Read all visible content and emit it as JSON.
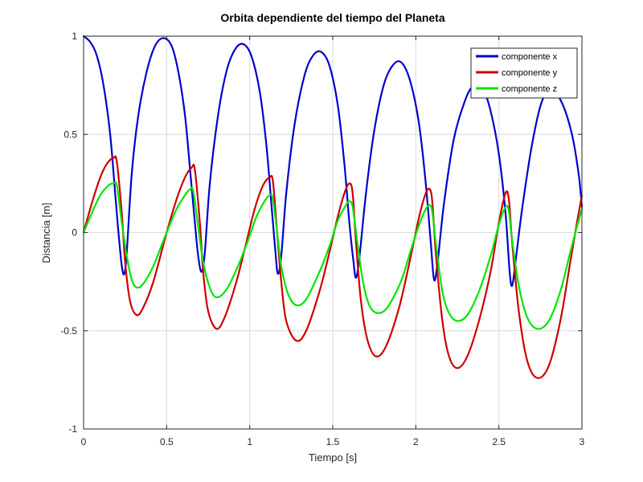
{
  "chart_data": {
    "type": "line",
    "title": "Orbita dependiente del tiempo del Planeta",
    "xlabel": "Tiempo [s]",
    "ylabel": "Distancia [m]",
    "xlim": [
      0,
      3
    ],
    "ylim": [
      -1,
      1
    ],
    "xticks": [
      0,
      0.5,
      1,
      1.5,
      2,
      2.5,
      3
    ],
    "xtick_labels": [
      "0",
      "0.5",
      "1",
      "1.5",
      "2",
      "2.5",
      "3"
    ],
    "yticks": [
      -1,
      -0.5,
      0,
      0.5,
      1
    ],
    "ytick_labels": [
      "-1",
      "-0.5",
      "0",
      "0.5",
      "1"
    ],
    "grid": true,
    "legend_position": "top-right",
    "series": [
      {
        "name": "componente x",
        "color": "#0000cc",
        "points": [
          [
            0,
            1
          ],
          [
            0.04,
            0.97
          ],
          [
            0.08,
            0.9
          ],
          [
            0.12,
            0.75
          ],
          [
            0.16,
            0.5
          ],
          [
            0.19,
            0.2
          ],
          [
            0.21,
            0
          ],
          [
            0.23,
            -0.17
          ],
          [
            0.245,
            -0.21
          ],
          [
            0.26,
            -0.1
          ],
          [
            0.29,
            0.3
          ],
          [
            0.33,
            0.6
          ],
          [
            0.38,
            0.82
          ],
          [
            0.43,
            0.95
          ],
          [
            0.48,
            0.99
          ],
          [
            0.53,
            0.95
          ],
          [
            0.57,
            0.82
          ],
          [
            0.61,
            0.6
          ],
          [
            0.64,
            0.33
          ],
          [
            0.67,
            0.05
          ],
          [
            0.69,
            -0.12
          ],
          [
            0.71,
            -0.2
          ],
          [
            0.73,
            -0.1
          ],
          [
            0.76,
            0.25
          ],
          [
            0.81,
            0.6
          ],
          [
            0.86,
            0.82
          ],
          [
            0.91,
            0.93
          ],
          [
            0.96,
            0.96
          ],
          [
            1.01,
            0.9
          ],
          [
            1.06,
            0.72
          ],
          [
            1.1,
            0.45
          ],
          [
            1.13,
            0.15
          ],
          [
            1.155,
            -0.1
          ],
          [
            1.17,
            -0.21
          ],
          [
            1.19,
            -0.12
          ],
          [
            1.22,
            0.2
          ],
          [
            1.27,
            0.55
          ],
          [
            1.33,
            0.8
          ],
          [
            1.38,
            0.9
          ],
          [
            1.43,
            0.92
          ],
          [
            1.48,
            0.85
          ],
          [
            1.53,
            0.65
          ],
          [
            1.57,
            0.35
          ],
          [
            1.6,
            0.05
          ],
          [
            1.625,
            -0.15
          ],
          [
            1.64,
            -0.23
          ],
          [
            1.66,
            -0.13
          ],
          [
            1.7,
            0.2
          ],
          [
            1.75,
            0.52
          ],
          [
            1.81,
            0.76
          ],
          [
            1.87,
            0.86
          ],
          [
            1.92,
            0.86
          ],
          [
            1.97,
            0.76
          ],
          [
            2.02,
            0.55
          ],
          [
            2.06,
            0.25
          ],
          [
            2.09,
            -0.05
          ],
          [
            2.11,
            -0.24
          ],
          [
            2.13,
            -0.16
          ],
          [
            2.17,
            0.15
          ],
          [
            2.23,
            0.48
          ],
          [
            2.3,
            0.68
          ],
          [
            2.35,
            0.75
          ],
          [
            2.4,
            0.74
          ],
          [
            2.45,
            0.62
          ],
          [
            2.5,
            0.4
          ],
          [
            2.54,
            0.1
          ],
          [
            2.565,
            -0.2
          ],
          [
            2.58,
            -0.27
          ],
          [
            2.6,
            -0.15
          ],
          [
            2.64,
            0.12
          ],
          [
            2.7,
            0.45
          ],
          [
            2.76,
            0.67
          ],
          [
            2.82,
            0.72
          ],
          [
            2.88,
            0.66
          ],
          [
            2.94,
            0.5
          ],
          [
            2.98,
            0.3
          ],
          [
            3,
            0.13
          ]
        ]
      },
      {
        "name": "componente y",
        "color": "#cc0000",
        "points": [
          [
            0,
            0
          ],
          [
            0.05,
            0.15
          ],
          [
            0.1,
            0.28
          ],
          [
            0.14,
            0.35
          ],
          [
            0.18,
            0.38
          ],
          [
            0.2,
            0.36
          ],
          [
            0.23,
            0.1
          ],
          [
            0.25,
            -0.15
          ],
          [
            0.28,
            -0.35
          ],
          [
            0.32,
            -0.42
          ],
          [
            0.36,
            -0.38
          ],
          [
            0.42,
            -0.25
          ],
          [
            0.5,
            0
          ],
          [
            0.56,
            0.17
          ],
          [
            0.61,
            0.28
          ],
          [
            0.65,
            0.33
          ],
          [
            0.67,
            0.32
          ],
          [
            0.7,
            0.05
          ],
          [
            0.72,
            -0.2
          ],
          [
            0.75,
            -0.4
          ],
          [
            0.8,
            -0.49
          ],
          [
            0.85,
            -0.43
          ],
          [
            0.92,
            -0.25
          ],
          [
            0.98,
            -0.05
          ],
          [
            1.03,
            0.12
          ],
          [
            1.08,
            0.24
          ],
          [
            1.12,
            0.28
          ],
          [
            1.14,
            0.26
          ],
          [
            1.165,
            0
          ],
          [
            1.19,
            -0.25
          ],
          [
            1.22,
            -0.45
          ],
          [
            1.28,
            -0.55
          ],
          [
            1.34,
            -0.5
          ],
          [
            1.42,
            -0.3
          ],
          [
            1.48,
            -0.1
          ],
          [
            1.53,
            0.08
          ],
          [
            1.57,
            0.2
          ],
          [
            1.6,
            0.25
          ],
          [
            1.62,
            0.2
          ],
          [
            1.64,
            -0.05
          ],
          [
            1.67,
            -0.35
          ],
          [
            1.71,
            -0.55
          ],
          [
            1.76,
            -0.63
          ],
          [
            1.82,
            -0.58
          ],
          [
            1.9,
            -0.38
          ],
          [
            1.97,
            -0.12
          ],
          [
            2.02,
            0.08
          ],
          [
            2.06,
            0.2
          ],
          [
            2.085,
            0.22
          ],
          [
            2.1,
            0.15
          ],
          [
            2.12,
            -0.1
          ],
          [
            2.16,
            -0.45
          ],
          [
            2.2,
            -0.63
          ],
          [
            2.25,
            -0.69
          ],
          [
            2.31,
            -0.63
          ],
          [
            2.38,
            -0.45
          ],
          [
            2.45,
            -0.2
          ],
          [
            2.5,
            0.05
          ],
          [
            2.54,
            0.2
          ],
          [
            2.56,
            0.17
          ],
          [
            2.58,
            -0.05
          ],
          [
            2.62,
            -0.4
          ],
          [
            2.67,
            -0.65
          ],
          [
            2.73,
            -0.74
          ],
          [
            2.8,
            -0.68
          ],
          [
            2.87,
            -0.45
          ],
          [
            2.93,
            -0.15
          ],
          [
            2.97,
            0.05
          ],
          [
            3,
            0.19
          ]
        ]
      },
      {
        "name": "componente z",
        "color": "#00e600",
        "points": [
          [
            0,
            0
          ],
          [
            0.05,
            0.1
          ],
          [
            0.1,
            0.19
          ],
          [
            0.15,
            0.24
          ],
          [
            0.18,
            0.25
          ],
          [
            0.2,
            0.24
          ],
          [
            0.23,
            0.05
          ],
          [
            0.26,
            -0.12
          ],
          [
            0.29,
            -0.24
          ],
          [
            0.32,
            -0.28
          ],
          [
            0.36,
            -0.26
          ],
          [
            0.42,
            -0.17
          ],
          [
            0.5,
            0
          ],
          [
            0.56,
            0.12
          ],
          [
            0.61,
            0.19
          ],
          [
            0.64,
            0.22
          ],
          [
            0.66,
            0.21
          ],
          [
            0.69,
            0.03
          ],
          [
            0.72,
            -0.15
          ],
          [
            0.76,
            -0.28
          ],
          [
            0.8,
            -0.33
          ],
          [
            0.86,
            -0.29
          ],
          [
            0.93,
            -0.17
          ],
          [
            0.99,
            -0.04
          ],
          [
            1.04,
            0.08
          ],
          [
            1.09,
            0.16
          ],
          [
            1.12,
            0.19
          ],
          [
            1.14,
            0.17
          ],
          [
            1.165,
            0
          ],
          [
            1.19,
            -0.17
          ],
          [
            1.23,
            -0.31
          ],
          [
            1.28,
            -0.37
          ],
          [
            1.34,
            -0.34
          ],
          [
            1.42,
            -0.2
          ],
          [
            1.48,
            -0.07
          ],
          [
            1.53,
            0.06
          ],
          [
            1.58,
            0.14
          ],
          [
            1.6,
            0.16
          ],
          [
            1.62,
            0.13
          ],
          [
            1.645,
            -0.03
          ],
          [
            1.68,
            -0.24
          ],
          [
            1.72,
            -0.37
          ],
          [
            1.77,
            -0.41
          ],
          [
            1.83,
            -0.38
          ],
          [
            1.91,
            -0.25
          ],
          [
            1.97,
            -0.09
          ],
          [
            2.02,
            0.04
          ],
          [
            2.06,
            0.12
          ],
          [
            2.085,
            0.14
          ],
          [
            2.1,
            0.1
          ],
          [
            2.12,
            -0.05
          ],
          [
            2.16,
            -0.3
          ],
          [
            2.2,
            -0.41
          ],
          [
            2.25,
            -0.45
          ],
          [
            2.31,
            -0.42
          ],
          [
            2.38,
            -0.3
          ],
          [
            2.45,
            -0.12
          ],
          [
            2.5,
            0.04
          ],
          [
            2.54,
            0.13
          ],
          [
            2.56,
            0.11
          ],
          [
            2.58,
            -0.04
          ],
          [
            2.62,
            -0.27
          ],
          [
            2.67,
            -0.43
          ],
          [
            2.73,
            -0.49
          ],
          [
            2.8,
            -0.45
          ],
          [
            2.87,
            -0.3
          ],
          [
            2.93,
            -0.1
          ],
          [
            2.97,
            0.03
          ],
          [
            3,
            0.12
          ]
        ]
      }
    ]
  }
}
